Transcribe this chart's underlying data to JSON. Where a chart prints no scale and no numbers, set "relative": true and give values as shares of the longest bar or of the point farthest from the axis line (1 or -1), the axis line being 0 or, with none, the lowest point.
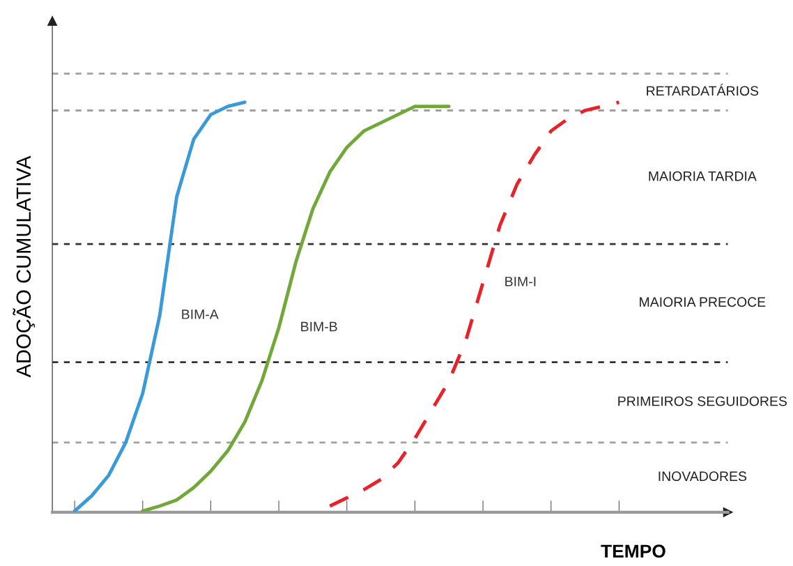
{
  "chart_data": {
    "type": "line",
    "relative": true,
    "xlabel": "TEMPO",
    "ylabel": "ADOÇÃO CUMULATIVA",
    "grid": false,
    "legend": false,
    "categories": [
      null,
      null,
      null,
      null,
      null,
      null,
      null,
      null,
      null,
      null,
      null,
      null,
      null,
      null,
      null,
      null,
      null,
      null,
      null,
      null,
      null,
      null,
      null,
      null,
      null,
      null,
      null,
      null,
      null,
      null,
      null,
      null,
      null
    ],
    "series": [
      {
        "name": "BIM-A",
        "color": "#3a9ad9",
        "line_style": "solid",
        "values": [
          0.003,
          0.04,
          0.09,
          0.17,
          0.29,
          0.48,
          0.77,
          0.91,
          0.97,
          0.99,
          1.0,
          null,
          null,
          null,
          null,
          null,
          null,
          null,
          null,
          null,
          null,
          null,
          null,
          null,
          null,
          null,
          null,
          null,
          null,
          null,
          null,
          null,
          null
        ]
      },
      {
        "name": "BIM-B",
        "color": "#72a83a",
        "line_style": "solid",
        "values": [
          null,
          null,
          null,
          null,
          0.003,
          0.015,
          0.03,
          0.06,
          0.1,
          0.15,
          0.22,
          0.32,
          0.45,
          0.61,
          0.74,
          0.83,
          0.89,
          0.93,
          0.95,
          0.97,
          0.99,
          0.99,
          0.99,
          null,
          null,
          null,
          null,
          null,
          null,
          null,
          null,
          null,
          null
        ]
      },
      {
        "name": "BIM-I",
        "color": "#e8222a",
        "line_style": "dashed",
        "values": [
          null,
          null,
          null,
          null,
          null,
          null,
          null,
          null,
          null,
          null,
          null,
          null,
          null,
          null,
          null,
          0.015,
          0.035,
          0.055,
          0.08,
          0.12,
          0.18,
          0.25,
          0.32,
          0.42,
          0.56,
          0.7,
          0.8,
          0.87,
          0.93,
          0.96,
          0.98,
          0.99,
          1.0
        ]
      }
    ],
    "ref_lines": [
      {
        "axis": "y",
        "value": 0.17,
        "color": "#a0a0a0",
        "line_style": "dashed"
      },
      {
        "axis": "y",
        "value": 0.366,
        "color": "#333333",
        "line_style": "dashed"
      },
      {
        "axis": "y",
        "value": 0.654,
        "color": "#333333",
        "line_style": "dashed"
      },
      {
        "axis": "y",
        "value": 0.98,
        "color": "#a0a0a0",
        "line_style": "dashed"
      },
      {
        "axis": "y",
        "value": 1.07,
        "color": "#a0a0a0",
        "line_style": "dashed"
      }
    ],
    "annotations": [
      "RETARDATÁRIOS",
      "MAIORIA TARDIA",
      "MAIORIA PRECOCE",
      "PRIMEIROS SEGUIDORES",
      "INOVADORES"
    ]
  }
}
